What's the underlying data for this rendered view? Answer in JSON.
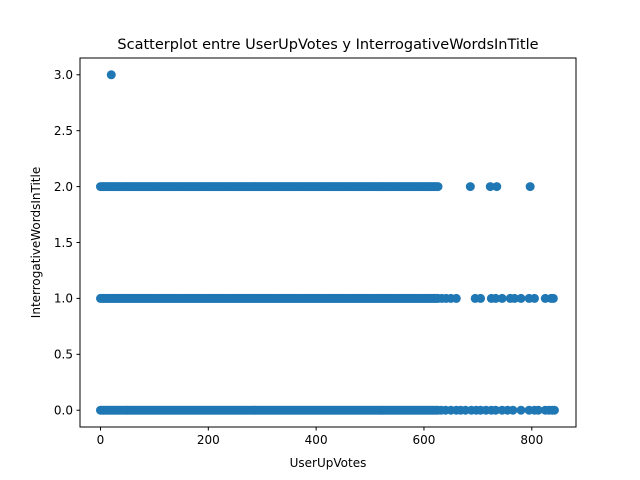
{
  "chart_data": {
    "type": "scatter",
    "title": "Scatterplot entre UserUpVotes y InterrogativeWordsInTitle",
    "xlabel": "UserUpVotes",
    "ylabel": "InterrogativeWordsInTitle",
    "xlim": [
      -38,
      882
    ],
    "ylim": [
      -0.15,
      3.15
    ],
    "xticks": [
      0,
      200,
      400,
      600,
      800
    ],
    "yticks": [
      0.0,
      0.5,
      1.0,
      1.5,
      2.0,
      2.5,
      3.0
    ],
    "xtick_labels": [
      "0",
      "200",
      "400",
      "600",
      "800"
    ],
    "ytick_labels": [
      "0.0",
      "0.5",
      "1.0",
      "1.5",
      "2.0",
      "2.5",
      "3.0"
    ],
    "grid": false,
    "marker_color": "#1f77b4",
    "series": [
      {
        "dense_ranges": [
          {
            "y": 0,
            "x_from": 0,
            "x_to": 628
          },
          {
            "y": 1,
            "x_from": 0,
            "x_to": 628
          },
          {
            "y": 2,
            "x_from": 0,
            "x_to": 628
          }
        ],
        "points": [
          {
            "x": 20,
            "y": 3
          },
          {
            "x": 686,
            "y": 2
          },
          {
            "x": 723,
            "y": 2
          },
          {
            "x": 735,
            "y": 2
          },
          {
            "x": 797,
            "y": 2
          },
          {
            "x": 633,
            "y": 1
          },
          {
            "x": 641,
            "y": 1
          },
          {
            "x": 650,
            "y": 1
          },
          {
            "x": 660,
            "y": 1
          },
          {
            "x": 695,
            "y": 1
          },
          {
            "x": 705,
            "y": 1
          },
          {
            "x": 725,
            "y": 1
          },
          {
            "x": 733,
            "y": 1
          },
          {
            "x": 745,
            "y": 1
          },
          {
            "x": 760,
            "y": 1
          },
          {
            "x": 768,
            "y": 1
          },
          {
            "x": 780,
            "y": 1
          },
          {
            "x": 795,
            "y": 1
          },
          {
            "x": 805,
            "y": 1
          },
          {
            "x": 825,
            "y": 1
          },
          {
            "x": 836,
            "y": 1
          },
          {
            "x": 840,
            "y": 1
          },
          {
            "x": 632,
            "y": 0
          },
          {
            "x": 640,
            "y": 0
          },
          {
            "x": 650,
            "y": 0
          },
          {
            "x": 660,
            "y": 0
          },
          {
            "x": 668,
            "y": 0
          },
          {
            "x": 677,
            "y": 0
          },
          {
            "x": 688,
            "y": 0
          },
          {
            "x": 697,
            "y": 0
          },
          {
            "x": 705,
            "y": 0
          },
          {
            "x": 715,
            "y": 0
          },
          {
            "x": 725,
            "y": 0
          },
          {
            "x": 733,
            "y": 0
          },
          {
            "x": 745,
            "y": 0
          },
          {
            "x": 755,
            "y": 0
          },
          {
            "x": 765,
            "y": 0
          },
          {
            "x": 780,
            "y": 0
          },
          {
            "x": 795,
            "y": 0
          },
          {
            "x": 805,
            "y": 0
          },
          {
            "x": 812,
            "y": 0
          },
          {
            "x": 825,
            "y": 0
          },
          {
            "x": 832,
            "y": 0
          },
          {
            "x": 838,
            "y": 0
          },
          {
            "x": 842,
            "y": 0
          }
        ]
      }
    ]
  }
}
